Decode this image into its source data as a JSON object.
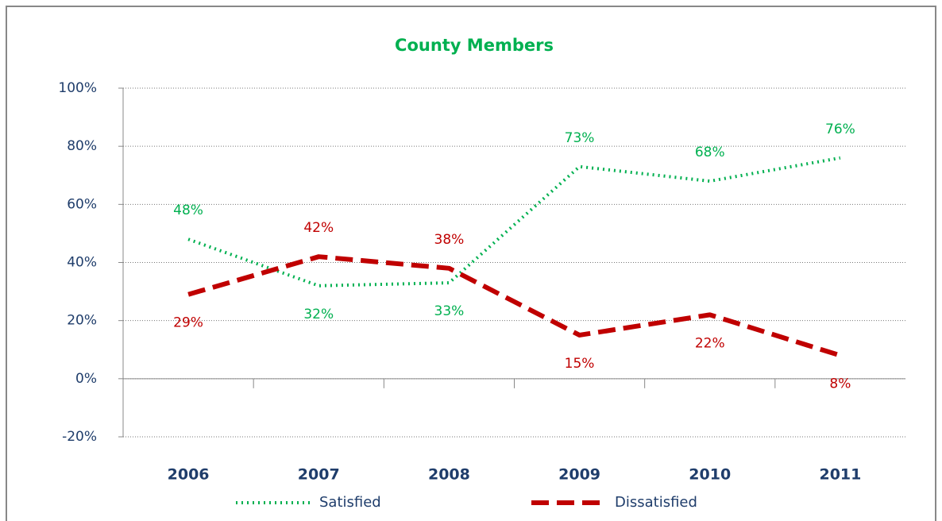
{
  "chart_data": {
    "type": "line",
    "title": "County Members",
    "categories": [
      "2006",
      "2007",
      "2008",
      "2009",
      "2010",
      "2011"
    ],
    "series": [
      {
        "name": "Satisfied",
        "color": "#00b050",
        "dash": "dotted",
        "values": [
          48,
          32,
          33,
          73,
          68,
          76
        ],
        "value_labels": [
          "48%",
          "32%",
          "33%",
          "73%",
          "68%",
          "76%"
        ]
      },
      {
        "name": "Dissatisfied",
        "color": "#c00000",
        "dash": "dashed",
        "values": [
          29,
          42,
          38,
          15,
          22,
          8
        ],
        "value_labels": [
          "29%",
          "42%",
          "38%",
          "15%",
          "22%",
          "8%"
        ]
      }
    ],
    "ylim": [
      -20,
      100
    ],
    "yticks": [
      {
        "value": -20,
        "label": "-20%"
      },
      {
        "value": 0,
        "label": "0%"
      },
      {
        "value": 20,
        "label": "20%"
      },
      {
        "value": 40,
        "label": "40%"
      },
      {
        "value": 60,
        "label": "60%"
      },
      {
        "value": 80,
        "label": "80%"
      },
      {
        "value": 100,
        "label": "100%"
      }
    ],
    "grid": true,
    "legend": "bottom"
  }
}
